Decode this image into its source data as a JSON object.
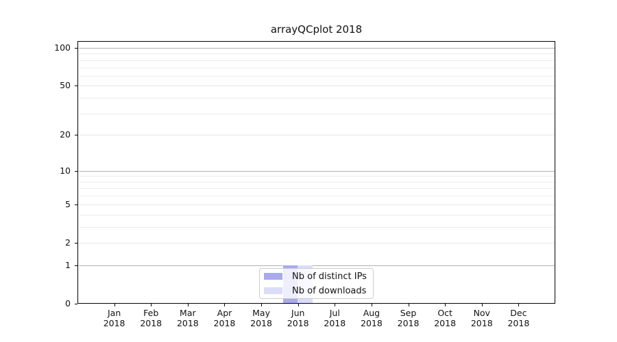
{
  "chart_data": {
    "type": "bar",
    "title": "arrayQCplot 2018",
    "categories": [
      "Jan",
      "Feb",
      "Mar",
      "Apr",
      "May",
      "Jun",
      "Jul",
      "Aug",
      "Sep",
      "Oct",
      "Nov",
      "Dec"
    ],
    "category_year": "2018",
    "series": [
      {
        "name": "Nb of distinct IPs",
        "color": "#a9aaee",
        "values": [
          0,
          0,
          0,
          0,
          0,
          1,
          0,
          0,
          0,
          0,
          0,
          0
        ]
      },
      {
        "name": "Nb of downloads",
        "color": "#dbdcf8",
        "values": [
          0,
          0,
          0,
          0,
          0,
          1,
          0,
          0,
          0,
          0,
          0,
          0
        ]
      }
    ],
    "y_axis": {
      "scale": "log1p",
      "max": 100,
      "ticks": [
        0,
        1,
        2,
        5,
        10,
        20,
        50,
        100
      ],
      "decade_lines": [
        1,
        10,
        100
      ],
      "minor_lines": [
        3,
        4,
        6,
        7,
        8,
        9,
        30,
        40,
        60,
        70,
        80,
        90
      ]
    },
    "legend": {
      "position": "lower center"
    },
    "colors": {
      "spine": "#000000",
      "decade_gridline": "#b0b0b0",
      "minor_gridline": "#ebebeb",
      "background": "#ffffff"
    }
  }
}
